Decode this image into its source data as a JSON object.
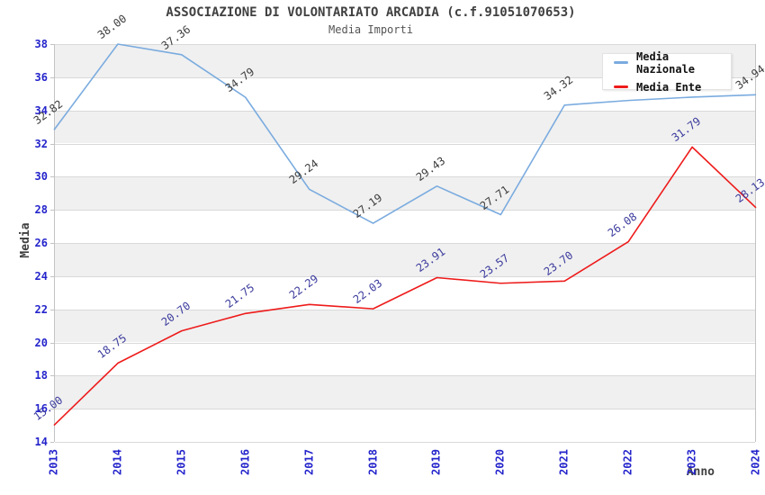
{
  "title": "ASSOCIAZIONE DI VOLONTARIATO ARCADIA (c.f.91051070653)",
  "subtitle": "Media Importi",
  "colors": {
    "band_gray": "#f0f0f0",
    "band_white": "#ffffff",
    "gridline": "#d9d9d9",
    "plot_border": "#c3c3c3",
    "axis_tick_label": "#2424cc",
    "title_text": "#404040",
    "legend_text": "#111111"
  },
  "chart_data": {
    "type": "line",
    "title": "ASSOCIAZIONE DI VOLONTARIATO ARCADIA (c.f.91051070653)",
    "subtitle": "Media Importi",
    "xlabel": "Anno",
    "ylabel": "Media",
    "x": [
      "2013",
      "2014",
      "2015",
      "2016",
      "2017",
      "2018",
      "2019",
      "2020",
      "2021",
      "2022",
      "2023",
      "2024"
    ],
    "ylim": [
      14,
      38
    ],
    "yticks": [
      14,
      16,
      18,
      20,
      22,
      24,
      26,
      28,
      30,
      32,
      34,
      36,
      38
    ],
    "grid": "horizontal-bands-alternating",
    "legend_position": "top-right-inside",
    "series": [
      {
        "name": "Media Nazionale",
        "color": "#7aabdf",
        "label_color": "#3c3c3c",
        "values": [
          32.82,
          38.0,
          37.36,
          34.79,
          29.24,
          27.19,
          29.43,
          27.71,
          34.32,
          34.6,
          34.8,
          34.94
        ],
        "labels": [
          "32.82",
          "38.00",
          "37.36",
          "34.79",
          "29.24",
          "27.19",
          "29.43",
          "27.71",
          "34.32",
          "",
          "",
          "34.94"
        ]
      },
      {
        "name": "Media Ente",
        "color": "#ee1b1b",
        "label_color": "#3a3a9d",
        "values": [
          15.0,
          18.75,
          20.7,
          21.75,
          22.29,
          22.03,
          23.91,
          23.57,
          23.7,
          26.08,
          31.79,
          28.13
        ],
        "labels": [
          "15.00",
          "18.75",
          "20.70",
          "21.75",
          "22.29",
          "22.03",
          "23.91",
          "23.57",
          "23.70",
          "26.08",
          "31.79",
          "28.13"
        ]
      }
    ]
  }
}
